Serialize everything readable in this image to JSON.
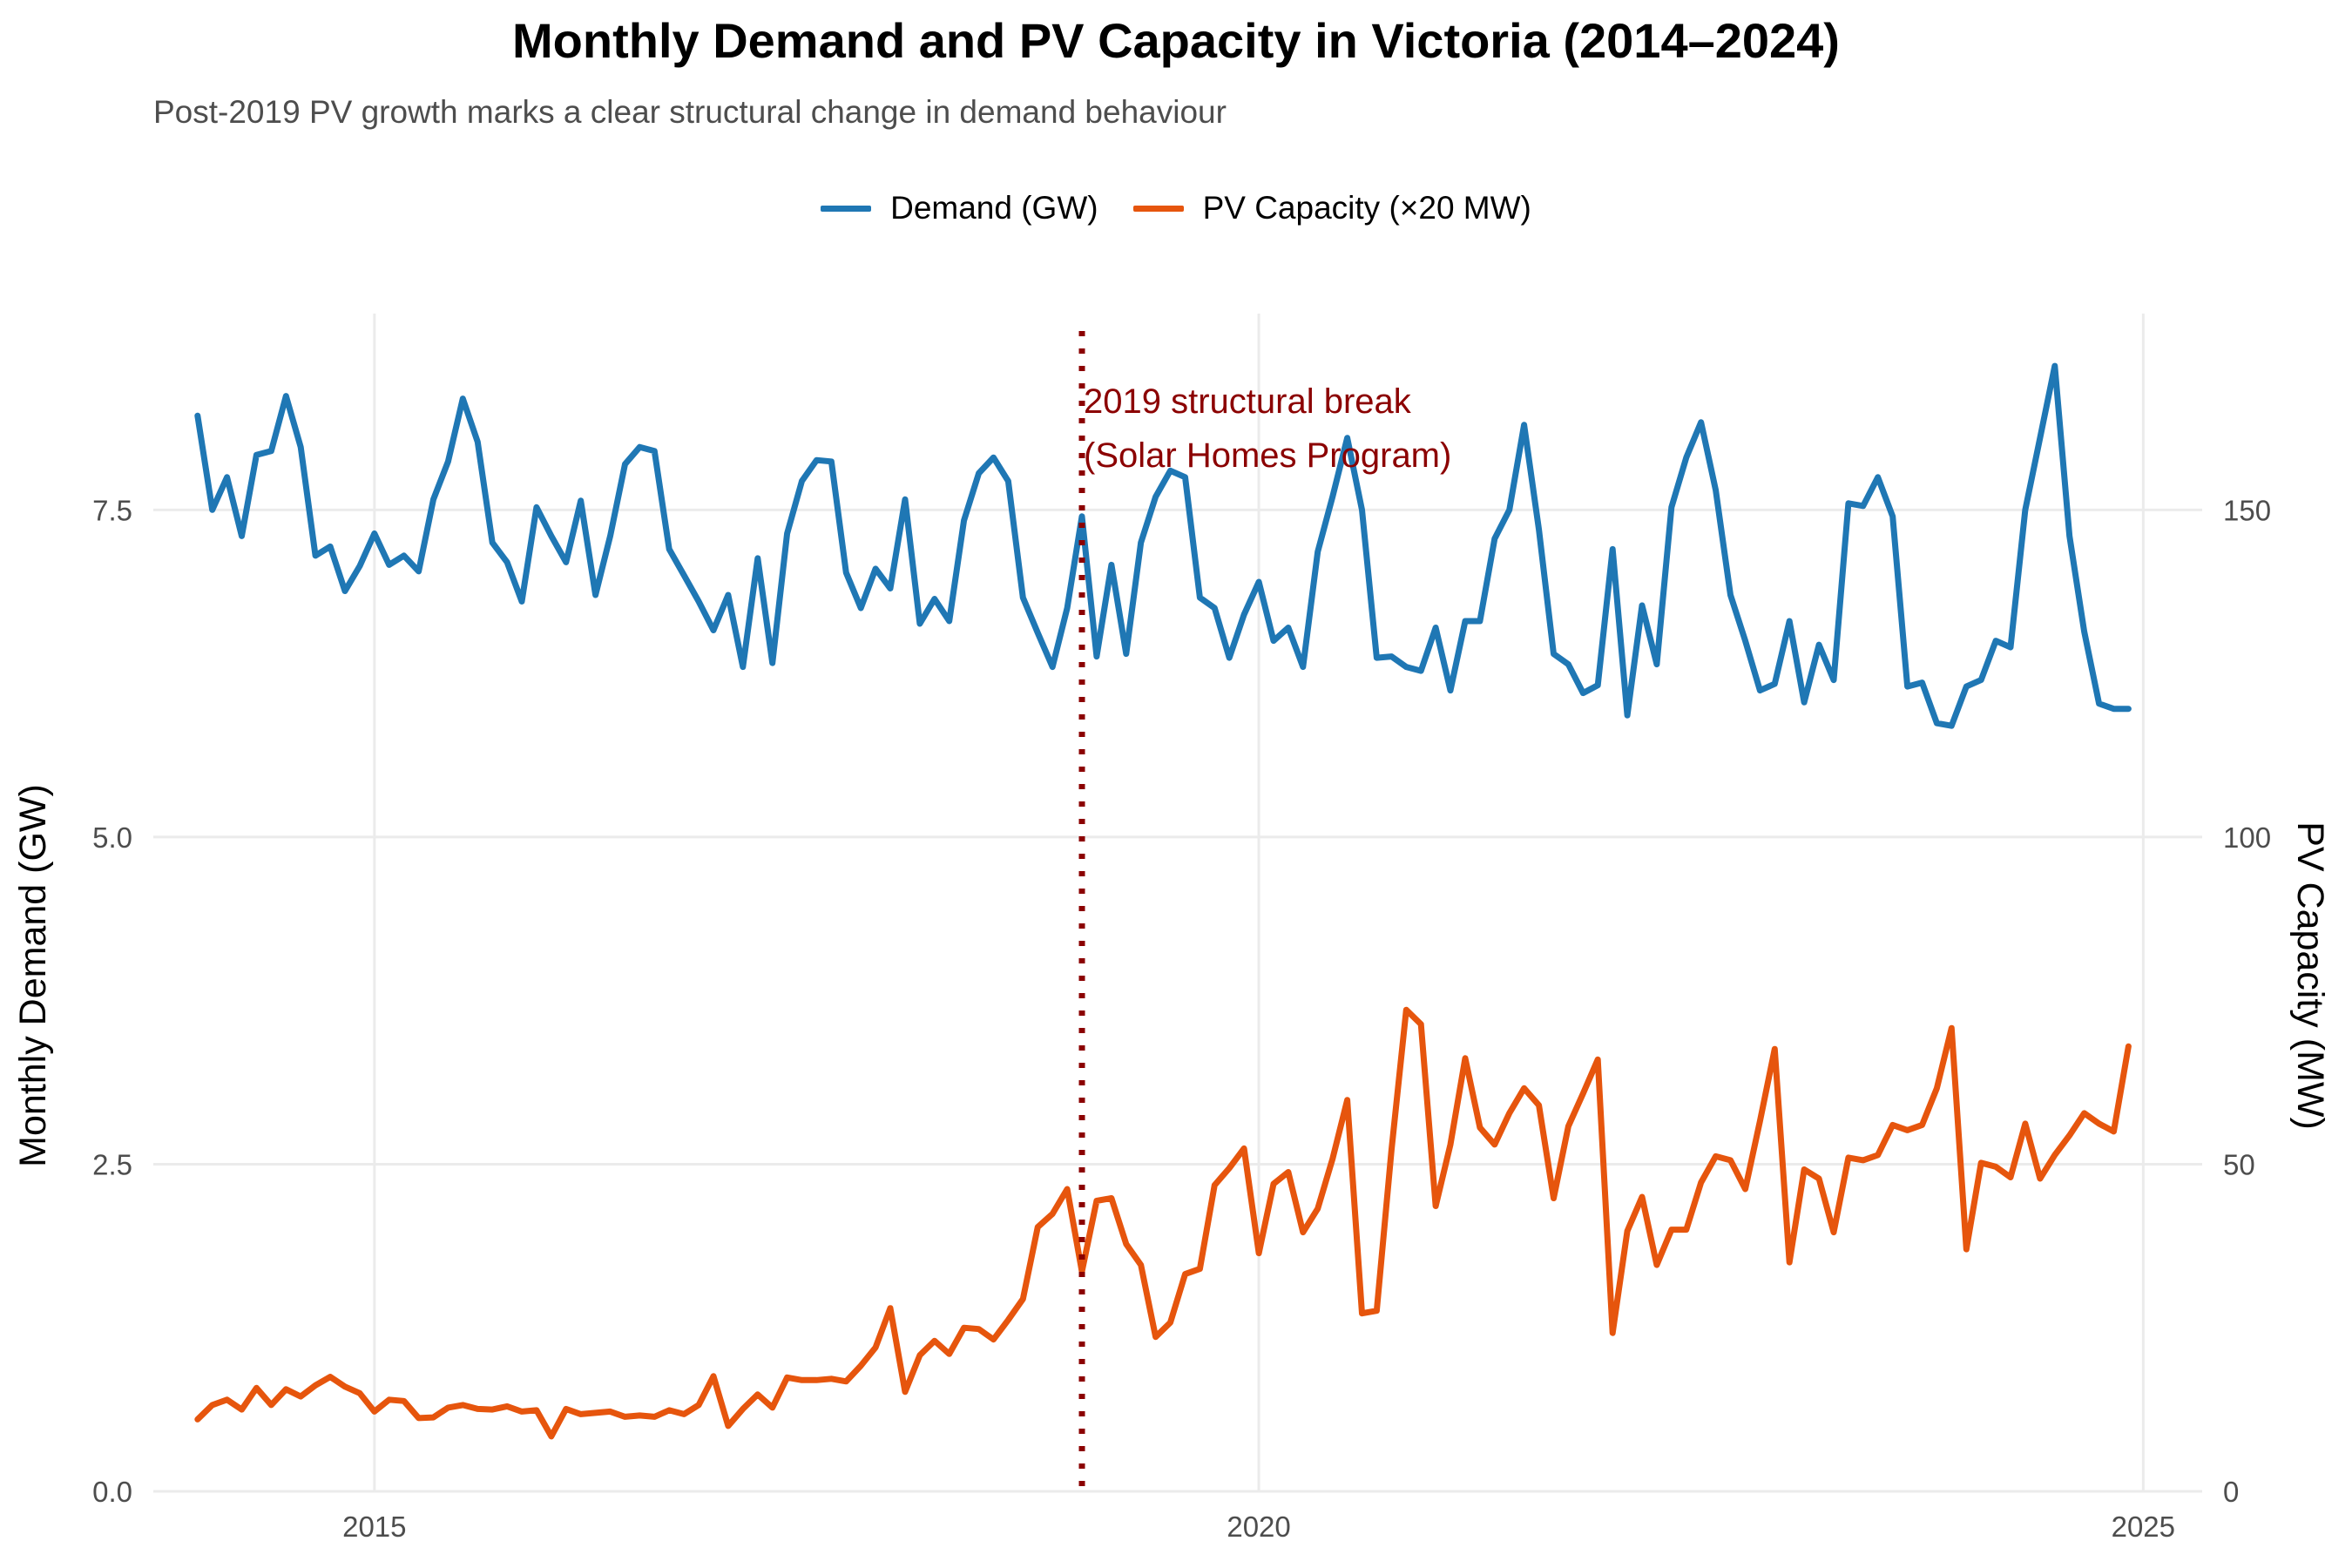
{
  "chart_data": {
    "type": "line",
    "title": "Monthly Demand and PV Capacity in Victoria (2014–2024)",
    "subtitle": "Post-2019 PV growth marks a clear structural change in demand behaviour",
    "ylabel": "Monthly Demand (GW)",
    "y2label": "PV Capacity (MW)",
    "xlabel": "",
    "x_ticks": [
      "2015",
      "2020",
      "2025"
    ],
    "y_ticks": [
      "0.0",
      "2.5",
      "5.0",
      "7.5"
    ],
    "y2_ticks": [
      "0",
      "50",
      "100",
      "150"
    ],
    "xlim": [
      "2013-10",
      "2025-05"
    ],
    "ylim": [
      0,
      9
    ],
    "y2lim": [
      0,
      180
    ],
    "grid": true,
    "legend_position": "top",
    "annotation": {
      "x": "2019-01",
      "lines": [
        "2019 structural break",
        "(Solar Homes Program)"
      ],
      "color": "#8b0000"
    },
    "x_start": "2014-01",
    "x_step": "month",
    "series": [
      {
        "name": "Demand (GW)",
        "color": "#1f77b4",
        "axis": "left",
        "values": [
          8.22,
          7.5,
          7.75,
          7.3,
          7.92,
          7.95,
          8.37,
          7.98,
          7.15,
          7.22,
          6.88,
          7.07,
          7.32,
          7.08,
          7.15,
          7.03,
          7.58,
          7.87,
          8.35,
          8.02,
          7.25,
          7.1,
          6.8,
          7.52,
          7.3,
          7.1,
          7.57,
          6.85,
          7.3,
          7.85,
          7.98,
          7.95,
          7.2,
          7.0,
          6.8,
          6.58,
          6.85,
          6.3,
          7.13,
          6.33,
          7.32,
          7.72,
          7.88,
          7.87,
          7.02,
          6.75,
          7.05,
          6.9,
          7.58,
          6.63,
          6.82,
          6.65,
          7.42,
          7.78,
          7.9,
          7.72,
          6.83,
          6.56,
          6.3,
          6.75,
          7.45,
          6.38,
          7.08,
          6.4,
          7.25,
          7.6,
          7.8,
          7.75,
          6.83,
          6.75,
          6.37,
          6.7,
          6.95,
          6.5,
          6.6,
          6.3,
          7.18,
          7.6,
          8.05,
          7.5,
          6.37,
          6.38,
          6.3,
          6.27,
          6.6,
          6.12,
          6.65,
          6.65,
          7.28,
          7.5,
          8.15,
          7.35,
          6.4,
          6.32,
          6.1,
          6.16,
          7.2,
          5.93,
          6.77,
          6.32,
          7.52,
          7.9,
          8.17,
          7.65,
          6.85,
          6.5,
          6.12,
          6.17,
          6.65,
          6.03,
          6.47,
          6.2,
          7.55,
          7.53,
          7.75,
          7.45,
          6.15,
          6.18,
          5.87,
          5.85,
          6.15,
          6.2,
          6.5,
          6.45,
          7.5,
          8.05,
          8.6,
          7.3,
          6.57,
          6.02,
          5.98,
          5.98
        ]
      },
      {
        "name": "PV Capacity (×20 MW)",
        "color": "#e6550d",
        "axis": "right",
        "values": [
          11,
          13.2,
          14,
          12.5,
          15.8,
          13.2,
          15.6,
          14.5,
          16.2,
          17.5,
          16,
          15,
          12.2,
          14,
          13.8,
          11.2,
          11.3,
          12.8,
          13.2,
          12.6,
          12.5,
          13,
          12.2,
          12.4,
          8.4,
          12.6,
          11.8,
          12,
          12.2,
          11.4,
          11.6,
          11.4,
          12.4,
          11.8,
          13.2,
          17.6,
          10,
          12.6,
          14.8,
          12.8,
          17.4,
          17,
          17,
          17.2,
          16.8,
          19.2,
          22,
          28,
          15.2,
          20.8,
          23,
          21,
          25,
          24.8,
          23.2,
          26.2,
          29.4,
          40.4,
          42.4,
          46.2,
          33.6,
          44.4,
          44.8,
          37.8,
          34.6,
          23.6,
          25.8,
          33.2,
          34,
          46.8,
          49.4,
          52.4,
          36.4,
          47,
          48.8,
          39.6,
          43.2,
          50.8,
          59.8,
          27.2,
          27.6,
          52.2,
          73.6,
          71.4,
          43.6,
          53,
          66.2,
          55.6,
          53,
          57.8,
          61.6,
          59,
          44.8,
          55.8,
          60.8,
          66,
          24.2,
          39.8,
          45,
          34.6,
          40,
          40,
          47.2,
          51.2,
          50.6,
          46.2,
          56.6,
          67.6,
          35,
          49.2,
          47.8,
          39.6,
          51,
          50.6,
          51.4,
          56,
          55.2,
          56,
          61.6,
          70.8,
          37,
          50.2,
          49.6,
          48,
          56.2,
          47.8,
          51.4,
          54.4,
          57.8,
          56.2,
          55,
          68
        ]
      }
    ]
  }
}
